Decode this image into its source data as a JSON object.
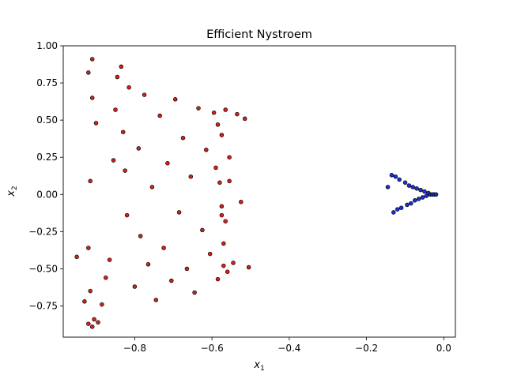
{
  "chart_data": {
    "type": "scatter",
    "title": "Efficient Nystroem",
    "xlabel": "x",
    "xlabel_sub": "1",
    "ylabel": "x",
    "ylabel_sub": "2",
    "xlim": [
      -0.985,
      0.03
    ],
    "ylim": [
      -0.96,
      1.0
    ],
    "xticks": [
      -0.8,
      -0.6,
      -0.4,
      -0.2,
      0.0
    ],
    "xtick_labels": [
      "−0.8",
      "−0.6",
      "−0.4",
      "−0.2",
      "0.0"
    ],
    "yticks": [
      -0.75,
      -0.5,
      -0.25,
      0.0,
      0.25,
      0.5,
      0.75,
      1.0
    ],
    "ytick_labels": [
      "−0.75",
      "−0.50",
      "−0.25",
      "0.00",
      "0.25",
      "0.50",
      "0.75",
      "1.00"
    ],
    "grid": false,
    "series": [
      {
        "color": "#d62020",
        "edge_color": "#000000",
        "values": [
          [
            -0.91,
            0.91
          ],
          [
            -0.92,
            0.82
          ],
          [
            -0.91,
            0.65
          ],
          [
            -0.9,
            0.48
          ],
          [
            -0.915,
            0.09
          ],
          [
            -0.95,
            -0.42
          ],
          [
            -0.92,
            -0.36
          ],
          [
            -0.915,
            -0.65
          ],
          [
            -0.93,
            -0.72
          ],
          [
            -0.905,
            -0.84
          ],
          [
            -0.92,
            -0.87
          ],
          [
            -0.91,
            -0.89
          ],
          [
            -0.895,
            -0.86
          ],
          [
            -0.885,
            -0.74
          ],
          [
            -0.875,
            -0.56
          ],
          [
            -0.865,
            -0.44
          ],
          [
            -0.855,
            0.23
          ],
          [
            -0.85,
            0.57
          ],
          [
            -0.845,
            0.79
          ],
          [
            -0.835,
            0.86
          ],
          [
            -0.83,
            0.42
          ],
          [
            -0.825,
            0.16
          ],
          [
            -0.82,
            -0.14
          ],
          [
            -0.815,
            0.72
          ],
          [
            -0.8,
            -0.62
          ],
          [
            -0.79,
            0.31
          ],
          [
            -0.785,
            -0.28
          ],
          [
            -0.775,
            0.67
          ],
          [
            -0.765,
            -0.47
          ],
          [
            -0.755,
            0.05
          ],
          [
            -0.745,
            -0.71
          ],
          [
            -0.735,
            0.53
          ],
          [
            -0.725,
            -0.36
          ],
          [
            -0.715,
            0.21
          ],
          [
            -0.705,
            -0.58
          ],
          [
            -0.695,
            0.64
          ],
          [
            -0.685,
            -0.12
          ],
          [
            -0.675,
            0.38
          ],
          [
            -0.665,
            -0.5
          ],
          [
            -0.655,
            0.12
          ],
          [
            -0.645,
            -0.66
          ],
          [
            -0.635,
            0.58
          ],
          [
            -0.625,
            -0.24
          ],
          [
            -0.615,
            0.3
          ],
          [
            -0.605,
            -0.4
          ],
          [
            -0.595,
            0.55
          ],
          [
            -0.585,
            -0.57
          ],
          [
            -0.575,
            0.4
          ],
          [
            -0.565,
            -0.18
          ],
          [
            -0.555,
            0.25
          ],
          [
            -0.545,
            -0.46
          ],
          [
            -0.535,
            0.54
          ],
          [
            -0.525,
            -0.05
          ],
          [
            -0.515,
            0.51
          ],
          [
            -0.505,
            -0.49
          ],
          [
            -0.59,
            0.18
          ],
          [
            -0.585,
            0.47
          ],
          [
            -0.575,
            -0.08
          ],
          [
            -0.57,
            -0.33
          ],
          [
            -0.58,
            0.08
          ],
          [
            -0.56,
            -0.52
          ],
          [
            -0.565,
            0.57
          ],
          [
            -0.555,
            0.09
          ],
          [
            -0.57,
            -0.48
          ],
          [
            -0.575,
            -0.14
          ]
        ]
      },
      {
        "color": "#1c2fd8",
        "edge_color": "#000000",
        "values": [
          [
            -0.135,
            0.13
          ],
          [
            -0.125,
            0.12
          ],
          [
            -0.145,
            0.05
          ],
          [
            -0.13,
            -0.12
          ],
          [
            -0.12,
            -0.1
          ],
          [
            -0.115,
            0.1
          ],
          [
            -0.11,
            -0.09
          ],
          [
            -0.1,
            0.08
          ],
          [
            -0.095,
            -0.07
          ],
          [
            -0.09,
            0.06
          ],
          [
            -0.085,
            -0.06
          ],
          [
            -0.08,
            0.05
          ],
          [
            -0.075,
            -0.04
          ],
          [
            -0.07,
            0.04
          ],
          [
            -0.065,
            -0.03
          ],
          [
            -0.06,
            0.03
          ],
          [
            -0.055,
            -0.02
          ],
          [
            -0.05,
            0.02
          ],
          [
            -0.045,
            -0.01
          ],
          [
            -0.04,
            0.01
          ],
          [
            -0.035,
            0.0
          ],
          [
            -0.03,
            0.0
          ],
          [
            -0.025,
            0.0
          ],
          [
            -0.02,
            0.0
          ]
        ]
      }
    ]
  }
}
